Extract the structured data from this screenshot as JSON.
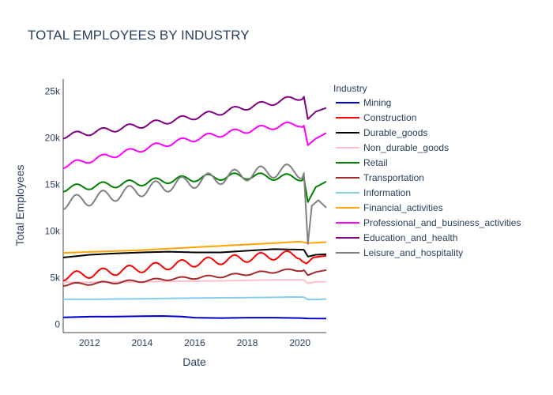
{
  "chart_data": {
    "type": "line",
    "title": "TOTAL EMPLOYEES BY INDUSTRY",
    "xlabel": "Date",
    "ylabel": "Total Employees",
    "xlim": [
      2011.0,
      2021.0
    ],
    "ylim": [
      -900,
      26300
    ],
    "x_ticks": [
      2012,
      2014,
      2016,
      2018,
      2020
    ],
    "x_tick_labels": [
      "2012",
      "2014",
      "2016",
      "2018",
      "2020"
    ],
    "y_ticks": [
      0,
      5000,
      10000,
      15000,
      20000,
      25000
    ],
    "y_tick_labels": [
      "0",
      "5k",
      "10k",
      "15k",
      "20k",
      "25k"
    ],
    "grid": false,
    "legend": {
      "title": "Industry",
      "position": "right"
    },
    "series": [
      {
        "name": "Mining",
        "color": "#0000cd",
        "points": [
          [
            2011.0,
            730
          ],
          [
            2012.0,
            800
          ],
          [
            2013.0,
            820
          ],
          [
            2014.0,
            860
          ],
          [
            2014.75,
            880
          ],
          [
            2015.5,
            820
          ],
          [
            2016.0,
            700
          ],
          [
            2017.0,
            660
          ],
          [
            2018.0,
            700
          ],
          [
            2019.0,
            700
          ],
          [
            2020.0,
            660
          ],
          [
            2020.3,
            620
          ],
          [
            2021.0,
            600
          ]
        ]
      },
      {
        "name": "Construction",
        "color": "#ff0000",
        "seasonal": 450,
        "points": [
          [
            2011.0,
            5100
          ],
          [
            2012.0,
            5400
          ],
          [
            2013.0,
            5700
          ],
          [
            2014.0,
            6000
          ],
          [
            2015.0,
            6300
          ],
          [
            2016.0,
            6600
          ],
          [
            2017.0,
            6850
          ],
          [
            2018.0,
            7100
          ],
          [
            2019.0,
            7350
          ],
          [
            2020.0,
            7450
          ],
          [
            2020.25,
            6500
          ],
          [
            2020.5,
            7150
          ],
          [
            2021.0,
            7350
          ]
        ]
      },
      {
        "name": "Durable_goods",
        "color": "#000000",
        "points": [
          [
            2011.0,
            7150
          ],
          [
            2012.0,
            7450
          ],
          [
            2013.0,
            7600
          ],
          [
            2014.0,
            7700
          ],
          [
            2015.0,
            7780
          ],
          [
            2016.0,
            7700
          ],
          [
            2017.0,
            7700
          ],
          [
            2018.0,
            7880
          ],
          [
            2019.0,
            8050
          ],
          [
            2020.0,
            8000
          ],
          [
            2020.15,
            7980
          ],
          [
            2020.3,
            7250
          ],
          [
            2020.6,
            7450
          ],
          [
            2021.0,
            7500
          ]
        ]
      },
      {
        "name": "Non_durable_goods",
        "color": "#ffc0cb",
        "points": [
          [
            2011.0,
            4500
          ],
          [
            2012.0,
            4500
          ],
          [
            2013.0,
            4520
          ],
          [
            2014.0,
            4550
          ],
          [
            2015.0,
            4600
          ],
          [
            2016.0,
            4620
          ],
          [
            2017.0,
            4650
          ],
          [
            2018.0,
            4700
          ],
          [
            2019.0,
            4750
          ],
          [
            2020.0,
            4760
          ],
          [
            2020.15,
            4750
          ],
          [
            2020.3,
            4380
          ],
          [
            2020.6,
            4550
          ],
          [
            2021.0,
            4550
          ]
        ]
      },
      {
        "name": "Retail",
        "color": "#008000",
        "seasonal": 350,
        "points": [
          [
            2011.0,
            14550
          ],
          [
            2012.0,
            14800
          ],
          [
            2013.0,
            15000
          ],
          [
            2014.0,
            15200
          ],
          [
            2015.0,
            15450
          ],
          [
            2016.0,
            15650
          ],
          [
            2017.0,
            15800
          ],
          [
            2018.0,
            15900
          ],
          [
            2019.0,
            15800
          ],
          [
            2020.0,
            15750
          ],
          [
            2020.15,
            15700
          ],
          [
            2020.3,
            13100
          ],
          [
            2020.6,
            14700
          ],
          [
            2021.0,
            15300
          ]
        ]
      },
      {
        "name": "Transportation",
        "color": "#a52a2a",
        "seasonal": 150,
        "points": [
          [
            2011.0,
            4250
          ],
          [
            2012.0,
            4350
          ],
          [
            2013.0,
            4500
          ],
          [
            2014.0,
            4650
          ],
          [
            2015.0,
            4850
          ],
          [
            2016.0,
            5000
          ],
          [
            2017.0,
            5150
          ],
          [
            2018.0,
            5400
          ],
          [
            2019.0,
            5650
          ],
          [
            2020.0,
            5850
          ],
          [
            2020.15,
            5800
          ],
          [
            2020.3,
            5250
          ],
          [
            2020.6,
            5600
          ],
          [
            2021.0,
            5800
          ]
        ]
      },
      {
        "name": "Information",
        "color": "#87ceeb",
        "points": [
          [
            2011.0,
            2680
          ],
          [
            2012.0,
            2670
          ],
          [
            2013.0,
            2700
          ],
          [
            2014.0,
            2720
          ],
          [
            2015.0,
            2760
          ],
          [
            2016.0,
            2800
          ],
          [
            2017.0,
            2830
          ],
          [
            2018.0,
            2850
          ],
          [
            2019.0,
            2880
          ],
          [
            2020.0,
            2920
          ],
          [
            2020.15,
            2900
          ],
          [
            2020.3,
            2650
          ],
          [
            2020.6,
            2650
          ],
          [
            2021.0,
            2700
          ]
        ]
      },
      {
        "name": "Financial_activities",
        "color": "#ffa500",
        "points": [
          [
            2011.0,
            7650
          ],
          [
            2012.0,
            7750
          ],
          [
            2013.0,
            7850
          ],
          [
            2014.0,
            7950
          ],
          [
            2015.0,
            8100
          ],
          [
            2016.0,
            8250
          ],
          [
            2017.0,
            8400
          ],
          [
            2018.0,
            8550
          ],
          [
            2019.0,
            8700
          ],
          [
            2020.0,
            8850
          ],
          [
            2020.3,
            8700
          ],
          [
            2021.0,
            8800
          ]
        ]
      },
      {
        "name": "Professional_and_business_activities",
        "color": "#ff00ff",
        "seasonal": 300,
        "points": [
          [
            2011.0,
            17000
          ],
          [
            2012.0,
            17600
          ],
          [
            2013.0,
            18200
          ],
          [
            2014.0,
            18800
          ],
          [
            2015.0,
            19400
          ],
          [
            2016.0,
            19900
          ],
          [
            2017.0,
            20400
          ],
          [
            2018.0,
            20800
          ],
          [
            2019.0,
            21200
          ],
          [
            2020.0,
            21500
          ],
          [
            2020.15,
            21300
          ],
          [
            2020.3,
            19200
          ],
          [
            2020.6,
            19900
          ],
          [
            2021.0,
            20500
          ]
        ]
      },
      {
        "name": "Education_and_health",
        "color": "#800080",
        "seasonal": 300,
        "points": [
          [
            2011.0,
            20200
          ],
          [
            2012.0,
            20550
          ],
          [
            2013.0,
            20950
          ],
          [
            2014.0,
            21350
          ],
          [
            2015.0,
            21800
          ],
          [
            2016.0,
            22250
          ],
          [
            2017.0,
            22750
          ],
          [
            2018.0,
            23300
          ],
          [
            2019.0,
            23800
          ],
          [
            2020.0,
            24350
          ],
          [
            2020.15,
            24400
          ],
          [
            2020.3,
            22000
          ],
          [
            2020.6,
            22800
          ],
          [
            2021.0,
            23200
          ]
        ]
      },
      {
        "name": "Leisure_and_hospitality",
        "color": "#808080",
        "seasonal": 700,
        "points": [
          [
            2011.0,
            13000
          ],
          [
            2012.0,
            13400
          ],
          [
            2013.0,
            13900
          ],
          [
            2014.0,
            14400
          ],
          [
            2015.0,
            14900
          ],
          [
            2016.0,
            15300
          ],
          [
            2017.0,
            15700
          ],
          [
            2018.0,
            16100
          ],
          [
            2019.0,
            16400
          ],
          [
            2019.85,
            16500
          ],
          [
            2020.15,
            16200
          ],
          [
            2020.3,
            8600
          ],
          [
            2020.45,
            12700
          ],
          [
            2020.7,
            13300
          ],
          [
            2021.0,
            12500
          ]
        ]
      }
    ]
  }
}
